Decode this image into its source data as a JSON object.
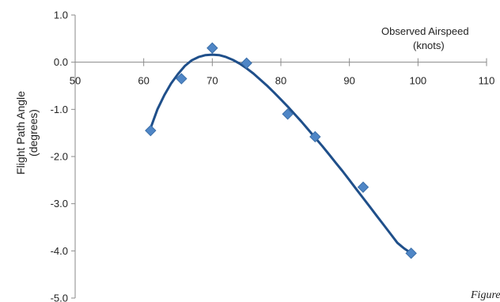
{
  "chart_data": {
    "type": "scatter",
    "xlabel": "Observed Airspeed",
    "xunit": "(knots)",
    "ylabel": "Flight Path Angle",
    "yunit": "(degrees)",
    "xlim": [
      50,
      110
    ],
    "ylim": [
      -5.0,
      1.0
    ],
    "x_ticks": [
      "50",
      "60",
      "70",
      "80",
      "90",
      "100",
      "110"
    ],
    "y_ticks": [
      "1.0",
      "0.0",
      "-1.0",
      "-2.0",
      "-3.0",
      "-4.0",
      "-5.0"
    ],
    "grid": false,
    "marker_color": "#4f86c6",
    "curve_color": "#1f4f8a",
    "points": [
      {
        "x": 61,
        "y": -1.45
      },
      {
        "x": 65.5,
        "y": -0.35
      },
      {
        "x": 70,
        "y": 0.3
      },
      {
        "x": 75,
        "y": -0.02
      },
      {
        "x": 81,
        "y": -1.1
      },
      {
        "x": 85,
        "y": -1.58
      },
      {
        "x": 92,
        "y": -2.65
      },
      {
        "x": 99,
        "y": -4.05
      }
    ],
    "trendline": {
      "type": "polynomial",
      "x": [
        61,
        62,
        63,
        64,
        65,
        66,
        67,
        68,
        69,
        70,
        71,
        72,
        73,
        74,
        75,
        76,
        77,
        78,
        79,
        80,
        81,
        82,
        83,
        84,
        85,
        86,
        87,
        88,
        89,
        90,
        91,
        92,
        93,
        94,
        95,
        96,
        97,
        98,
        99
      ],
      "y": [
        -1.4,
        -1.0,
        -0.7,
        -0.45,
        -0.25,
        -0.08,
        0.04,
        0.11,
        0.15,
        0.16,
        0.15,
        0.11,
        0.05,
        -0.03,
        -0.13,
        -0.24,
        -0.37,
        -0.5,
        -0.64,
        -0.79,
        -0.94,
        -1.1,
        -1.26,
        -1.43,
        -1.6,
        -1.77,
        -1.95,
        -2.13,
        -2.31,
        -2.5,
        -2.69,
        -2.88,
        -3.07,
        -3.26,
        -3.45,
        -3.64,
        -3.83,
        -3.95,
        -4.05
      ]
    }
  },
  "footer": {
    "figure_ref": "Figure"
  }
}
